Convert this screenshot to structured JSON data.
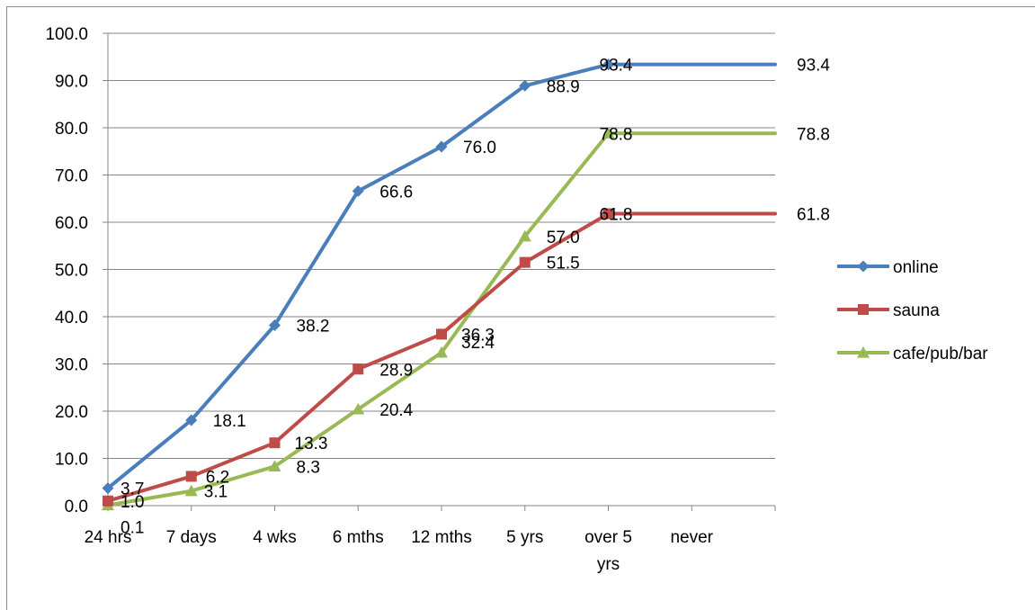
{
  "chart_data": {
    "type": "line",
    "categories": [
      [
        "24 hrs"
      ],
      [
        "7 days"
      ],
      [
        "4 wks"
      ],
      [
        "6 mths"
      ],
      [
        "12 mths"
      ],
      [
        "5 yrs"
      ],
      [
        "over 5",
        "yrs"
      ],
      [
        "never"
      ]
    ],
    "series": [
      {
        "name": "online",
        "color": "#4a7ebb",
        "marker": "diamond",
        "values": [
          3.7,
          18.1,
          38.2,
          66.6,
          76.0,
          88.9,
          93.4,
          93.4
        ],
        "labels": [
          "3.7",
          "18.1",
          "38.2",
          "66.6",
          "76.0",
          "88.9",
          "93.4",
          "93.4"
        ]
      },
      {
        "name": "sauna",
        "color": "#be4b48",
        "marker": "square",
        "values": [
          1.0,
          6.2,
          13.3,
          28.9,
          36.3,
          51.5,
          61.8,
          61.8
        ],
        "labels": [
          "1.0",
          "6.2",
          "13.3",
          "28.9",
          "36.3",
          "51.5",
          "61.8",
          "61.8"
        ]
      },
      {
        "name": "cafe/pub/bar",
        "color": "#98b954",
        "marker": "triangle",
        "values": [
          0.1,
          3.1,
          8.3,
          20.4,
          32.4,
          57.0,
          78.8,
          78.8
        ],
        "labels": [
          "0.1",
          "3.1",
          "8.3",
          "20.4",
          "32.4",
          "57.0",
          "78.8",
          "78.8"
        ]
      }
    ],
    "y_ticks": [
      "0.0",
      "10.0",
      "20.0",
      "30.0",
      "40.0",
      "50.0",
      "60.0",
      "70.0",
      "80.0",
      "90.0",
      "100.0"
    ],
    "ylim": [
      0,
      100
    ],
    "title": "",
    "xlabel": "",
    "ylabel": "",
    "grid": "horizontal",
    "legend_position": "right"
  }
}
